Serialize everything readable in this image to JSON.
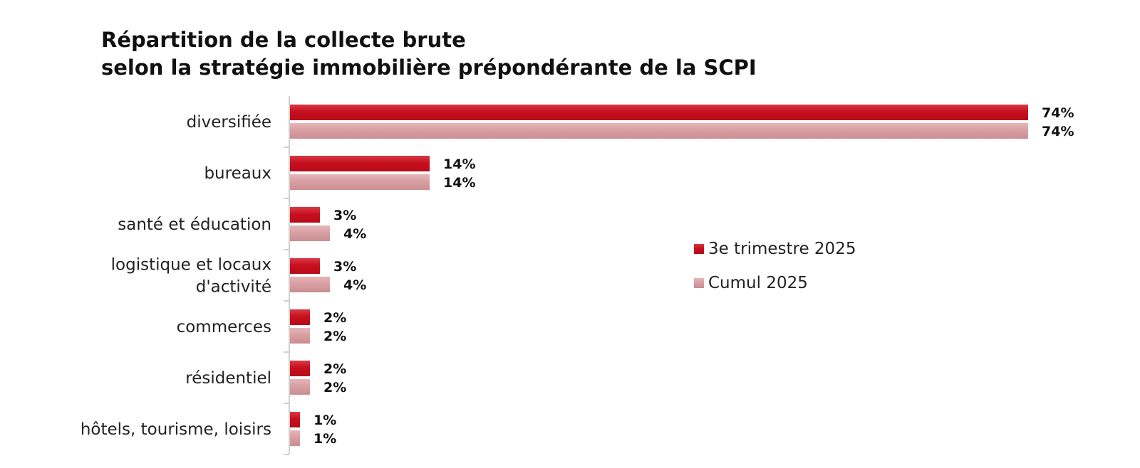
{
  "chart_data": {
    "type": "bar",
    "orientation": "horizontal",
    "title": [
      "Répartition de la collecte brute",
      "selon la stratégie immobilière prépondérante de la SCPI"
    ],
    "categories": [
      "diversifiée",
      "bureaux",
      "santé et éducation",
      "logistique et locaux d'activité",
      "commerces",
      "résidentiel",
      "hôtels, tourisme, loisirs"
    ],
    "category_lines": [
      [
        "diversifiée"
      ],
      [
        "bureaux"
      ],
      [
        "santé et éducation"
      ],
      [
        "logistique et locaux",
        "d'activité"
      ],
      [
        "commerces"
      ],
      [
        "résidentiel"
      ],
      [
        "hôtels, tourisme, loisirs"
      ]
    ],
    "series": [
      {
        "name": "3e trimestre 2025",
        "values": [
          74,
          14,
          3,
          3,
          2,
          2,
          1
        ],
        "labels": [
          "74%",
          "14%",
          "3%",
          "3%",
          "2%",
          "2%",
          "1%"
        ],
        "color": "#c8101f"
      },
      {
        "name": "Cumul 2025",
        "values": [
          74,
          14,
          4,
          4,
          2,
          2,
          1
        ],
        "labels": [
          "74%",
          "14%",
          "4%",
          "4%",
          "2%",
          "2%",
          "1%"
        ],
        "color": "#d9a0a4"
      }
    ],
    "xlim": [
      0,
      75
    ],
    "unit": "%",
    "grid": false,
    "legend": "right"
  }
}
